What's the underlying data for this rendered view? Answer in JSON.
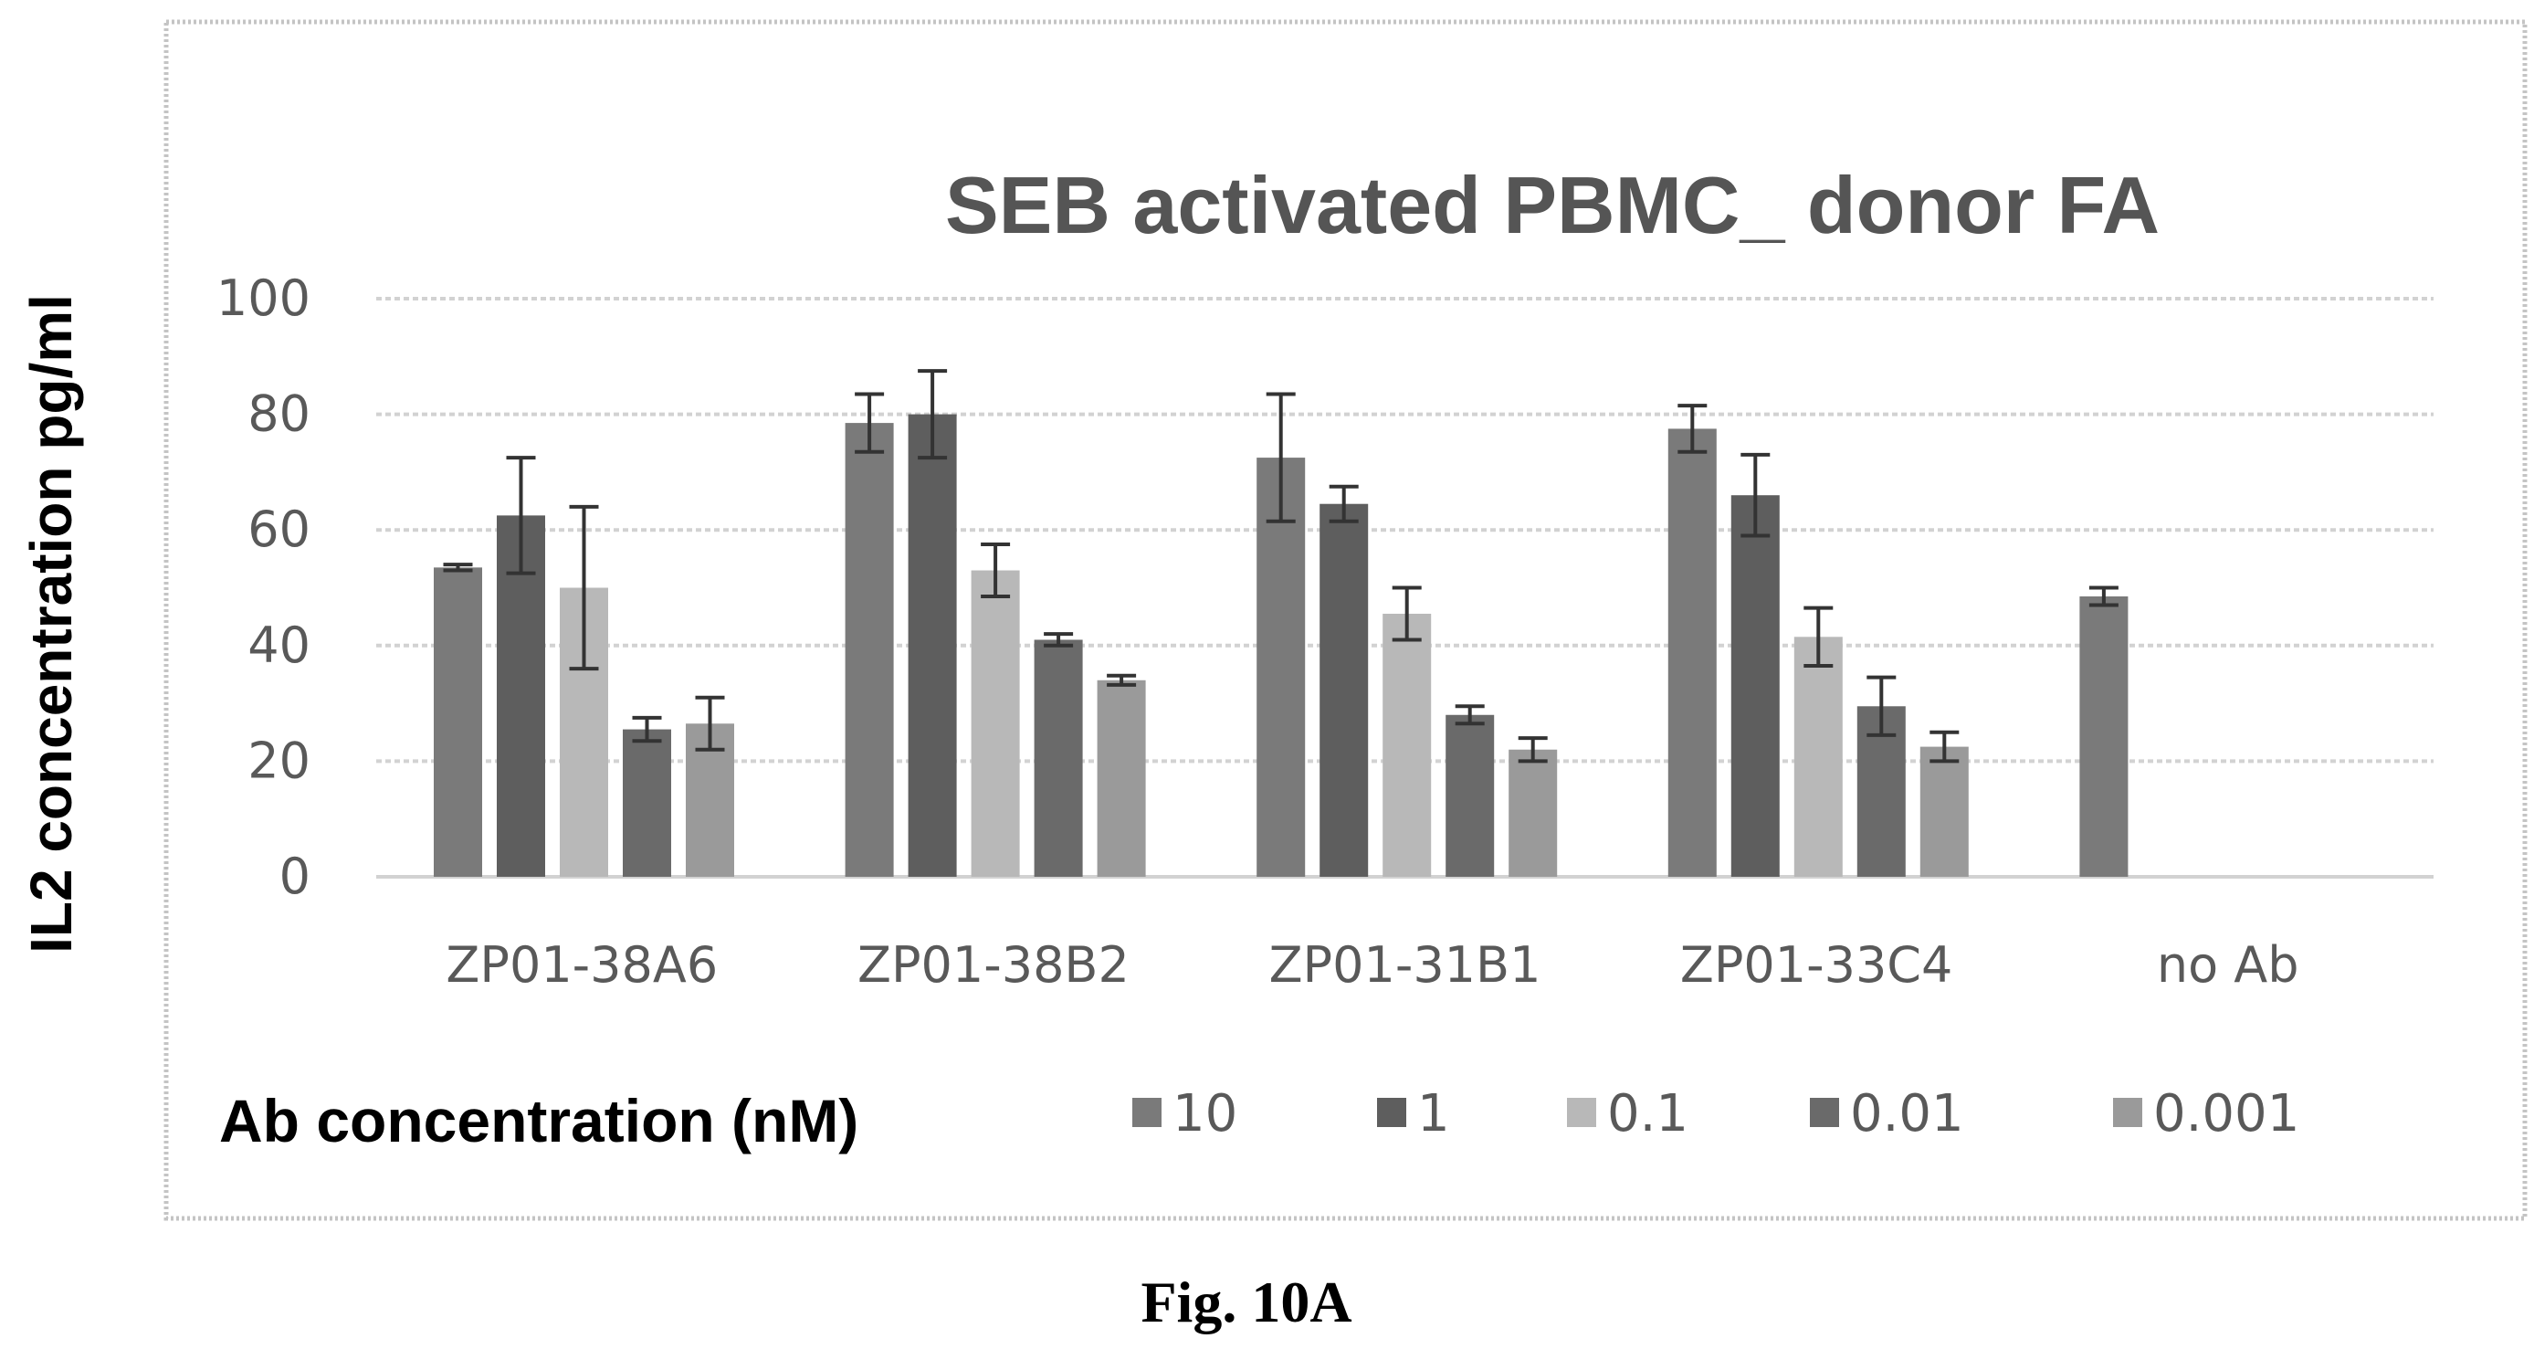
{
  "figure": {
    "caption": "Fig. 10A"
  },
  "chart_data": {
    "type": "bar",
    "title": "SEB activated PBMC_ donor FA",
    "xlabel": "",
    "ylabel": "IL2 concentration pg/ml",
    "ylim": [
      0,
      100
    ],
    "yticks": [
      "0",
      "20",
      "40",
      "60",
      "80",
      "100"
    ],
    "grid": true,
    "legend_position": "bottom",
    "legend_title": "Ab concentration (nM)",
    "categories": [
      "ZP01-38A6",
      "ZP01-38B2",
      "ZP01-31B1",
      "ZP01-33C4",
      "no Ab"
    ],
    "series": [
      {
        "name": "10",
        "color": "#7a7a7a",
        "values": [
          53.5,
          78.5,
          72.5,
          77.5,
          48.5
        ],
        "errors": [
          0.5,
          5,
          11,
          4,
          1.5
        ]
      },
      {
        "name": "1",
        "color": "#5e5e5e",
        "values": [
          62.5,
          80,
          64.5,
          66,
          null
        ],
        "errors": [
          10,
          7.5,
          3,
          7,
          null
        ]
      },
      {
        "name": "0.1",
        "color": "#b8b8b8",
        "values": [
          50,
          53,
          45.5,
          41.5,
          null
        ],
        "errors": [
          14,
          4.5,
          4.5,
          5,
          null
        ]
      },
      {
        "name": "0.01",
        "color": "#6a6a6a",
        "values": [
          25.5,
          41,
          28,
          29.5,
          null
        ],
        "errors": [
          2,
          1,
          1.5,
          5,
          null
        ]
      },
      {
        "name": "0.001",
        "color": "#9a9a9a",
        "values": [
          26.5,
          34,
          22,
          22.5,
          null
        ],
        "errors": [
          4.5,
          0.8,
          2,
          2.5,
          null
        ]
      }
    ]
  }
}
